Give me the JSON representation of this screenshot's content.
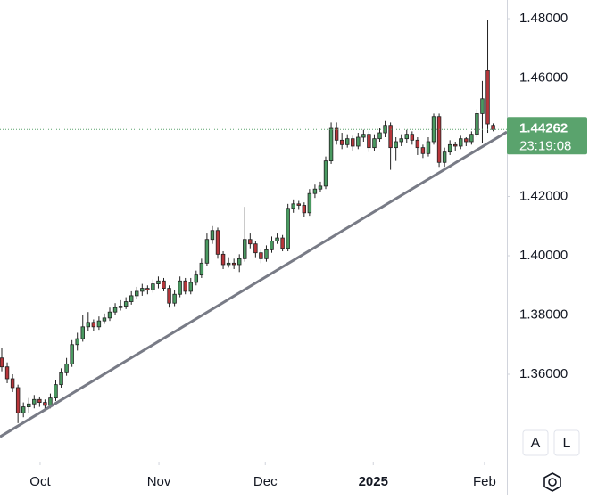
{
  "chart_data": {
    "type": "candlestick",
    "ohlc": [
      [
        1.3655,
        1.369,
        1.361,
        1.3625
      ],
      [
        1.3625,
        1.364,
        1.357,
        1.3585
      ],
      [
        1.3585,
        1.36,
        1.354,
        1.3555
      ],
      [
        1.3555,
        1.3565,
        1.3435,
        1.347
      ],
      [
        1.347,
        1.3505,
        1.3455,
        1.349
      ],
      [
        1.349,
        1.352,
        1.347,
        1.35
      ],
      [
        1.35,
        1.353,
        1.3485,
        1.3515
      ],
      [
        1.3515,
        1.3525,
        1.349,
        1.3505
      ],
      [
        1.3505,
        1.3515,
        1.348,
        1.3495
      ],
      [
        1.3495,
        1.3535,
        1.3485,
        1.352
      ],
      [
        1.352,
        1.358,
        1.351,
        1.3565
      ],
      [
        1.3565,
        1.362,
        1.3555,
        1.3605
      ],
      [
        1.3605,
        1.3655,
        1.3595,
        1.3635
      ],
      [
        1.3635,
        1.3715,
        1.3625,
        1.37
      ],
      [
        1.37,
        1.374,
        1.368,
        1.372
      ],
      [
        1.372,
        1.38,
        1.371,
        1.376
      ],
      [
        1.376,
        1.381,
        1.3745,
        1.3775
      ],
      [
        1.3775,
        1.3785,
        1.3745,
        1.376
      ],
      [
        1.376,
        1.3795,
        1.375,
        1.378
      ],
      [
        1.378,
        1.3805,
        1.377,
        1.379
      ],
      [
        1.379,
        1.3825,
        1.378,
        1.381
      ],
      [
        1.381,
        1.384,
        1.38,
        1.3825
      ],
      [
        1.3825,
        1.385,
        1.3815,
        1.383
      ],
      [
        1.383,
        1.386,
        1.382,
        1.3845
      ],
      [
        1.3845,
        1.388,
        1.3835,
        1.3865
      ],
      [
        1.3865,
        1.3895,
        1.3855,
        1.388
      ],
      [
        1.388,
        1.3905,
        1.3865,
        1.389
      ],
      [
        1.389,
        1.39,
        1.387,
        1.3885
      ],
      [
        1.3885,
        1.392,
        1.3875,
        1.3905
      ],
      [
        1.3905,
        1.393,
        1.389,
        1.3915
      ],
      [
        1.3915,
        1.3925,
        1.388,
        1.389
      ],
      [
        1.389,
        1.39,
        1.3825,
        1.384
      ],
      [
        1.384,
        1.3885,
        1.383,
        1.387
      ],
      [
        1.387,
        1.393,
        1.386,
        1.3915
      ],
      [
        1.3915,
        1.3925,
        1.387,
        1.388
      ],
      [
        1.388,
        1.3925,
        1.387,
        1.391
      ],
      [
        1.391,
        1.395,
        1.39,
        1.3935
      ],
      [
        1.3935,
        1.399,
        1.3925,
        1.3975
      ],
      [
        1.3975,
        1.4075,
        1.3965,
        1.4055
      ],
      [
        1.4055,
        1.41,
        1.404,
        1.4085
      ],
      [
        1.4085,
        1.4095,
        1.399,
        1.4005
      ],
      [
        1.4005,
        1.4015,
        1.3955,
        1.397
      ],
      [
        1.397,
        1.3995,
        1.396,
        1.3975
      ],
      [
        1.3975,
        1.399,
        1.3955,
        1.397
      ],
      [
        1.397,
        1.4005,
        1.3945,
        1.399
      ],
      [
        1.399,
        1.4165,
        1.398,
        1.4055
      ],
      [
        1.4055,
        1.4075,
        1.4025,
        1.404
      ],
      [
        1.404,
        1.405,
        1.3995,
        1.401
      ],
      [
        1.401,
        1.402,
        1.3975,
        1.399
      ],
      [
        1.399,
        1.4035,
        1.398,
        1.402
      ],
      [
        1.402,
        1.4065,
        1.401,
        1.405
      ],
      [
        1.405,
        1.4075,
        1.404,
        1.406
      ],
      [
        1.406,
        1.407,
        1.4015,
        1.4025
      ],
      [
        1.4025,
        1.4175,
        1.4015,
        1.416
      ],
      [
        1.416,
        1.419,
        1.4145,
        1.4175
      ],
      [
        1.4175,
        1.4185,
        1.4155,
        1.417
      ],
      [
        1.417,
        1.418,
        1.413,
        1.4145
      ],
      [
        1.4145,
        1.4225,
        1.4135,
        1.421
      ],
      [
        1.421,
        1.424,
        1.4195,
        1.4225
      ],
      [
        1.4225,
        1.425,
        1.4215,
        1.4235
      ],
      [
        1.4235,
        1.4335,
        1.4225,
        1.432
      ],
      [
        1.432,
        1.445,
        1.431,
        1.443
      ],
      [
        1.443,
        1.445,
        1.4375,
        1.439
      ],
      [
        1.439,
        1.4415,
        1.436,
        1.4375
      ],
      [
        1.4375,
        1.441,
        1.4365,
        1.4395
      ],
      [
        1.4395,
        1.4405,
        1.4355,
        1.437
      ],
      [
        1.437,
        1.4415,
        1.436,
        1.44
      ],
      [
        1.44,
        1.4425,
        1.4385,
        1.441
      ],
      [
        1.441,
        1.442,
        1.435,
        1.4365
      ],
      [
        1.4365,
        1.441,
        1.4355,
        1.4395
      ],
      [
        1.4395,
        1.443,
        1.4385,
        1.4415
      ],
      [
        1.4415,
        1.4455,
        1.44,
        1.444
      ],
      [
        1.444,
        1.445,
        1.429,
        1.4365
      ],
      [
        1.4365,
        1.44,
        1.432,
        1.4385
      ],
      [
        1.4385,
        1.441,
        1.437,
        1.4395
      ],
      [
        1.4395,
        1.4425,
        1.438,
        1.441
      ],
      [
        1.441,
        1.442,
        1.4375,
        1.439
      ],
      [
        1.439,
        1.44,
        1.434,
        1.4365
      ],
      [
        1.4365,
        1.4375,
        1.433,
        1.4345
      ],
      [
        1.4345,
        1.44,
        1.4335,
        1.4385
      ],
      [
        1.4385,
        1.448,
        1.4375,
        1.447
      ],
      [
        1.447,
        1.448,
        1.43,
        1.4315
      ],
      [
        1.4315,
        1.4365,
        1.43,
        1.435
      ],
      [
        1.435,
        1.439,
        1.434,
        1.4375
      ],
      [
        1.4375,
        1.4385,
        1.4355,
        1.437
      ],
      [
        1.437,
        1.4405,
        1.436,
        1.4395
      ],
      [
        1.4395,
        1.44,
        1.437,
        1.4385
      ],
      [
        1.4385,
        1.442,
        1.4375,
        1.441
      ],
      [
        1.441,
        1.4495,
        1.44,
        1.448
      ],
      [
        1.448,
        1.459,
        1.438,
        1.453
      ],
      [
        1.4625,
        1.4797,
        1.4415,
        1.4445
      ],
      [
        1.444,
        1.4447,
        1.442,
        1.44262
      ]
    ],
    "up_color": "#4a9a61",
    "down_color": "#b8363b",
    "xlim": [
      -0.33,
      93.55
    ],
    "xticks": [
      {
        "value": 7.1,
        "label": "Oct"
      },
      {
        "value": 29.1,
        "label": "Nov"
      },
      {
        "value": 48.8,
        "label": "Dec"
      },
      {
        "value": 68.8,
        "label": "2025"
      },
      {
        "value": 89.4,
        "label": "Feb"
      }
    ],
    "ylim": [
      1.33053,
      1.48632
    ],
    "yticks": [
      {
        "value": 1.48,
        "label": "1.48000"
      },
      {
        "value": 1.46,
        "label": "1.46000"
      },
      {
        "value": 1.44,
        "label": "1.44000"
      },
      {
        "value": 1.42,
        "label": "1.42000"
      },
      {
        "value": 1.4,
        "label": "1.40000"
      },
      {
        "value": 1.38,
        "label": "1.38000"
      },
      {
        "value": 1.36,
        "label": "1.36000"
      }
    ],
    "last_price": {
      "value": 1.44262,
      "label": "1.44262",
      "color": "#5aa36d"
    },
    "countdown": "23:19:08",
    "trendline": {
      "x": [
        -0.33,
        93.55
      ],
      "y": [
        1.3389,
        1.4418
      ],
      "color": "#787b86"
    },
    "buttons": [
      "A",
      "L"
    ]
  }
}
